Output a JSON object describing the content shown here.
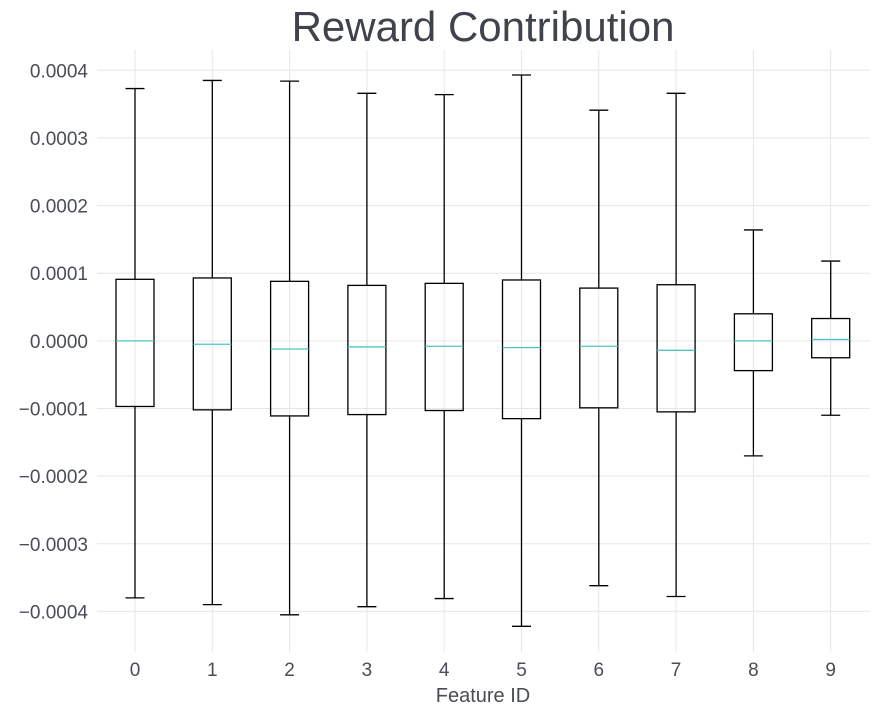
{
  "chart_data": {
    "type": "box",
    "title": "Reward Contribution",
    "xlabel": "Feature ID",
    "ylabel": "",
    "categories": [
      "0",
      "1",
      "2",
      "3",
      "4",
      "5",
      "6",
      "7",
      "8",
      "9"
    ],
    "ylim": [
      -0.00046,
      0.00043
    ],
    "yticks": [
      -0.0004,
      -0.0003,
      -0.0002,
      -0.0001,
      0.0,
      0.0001,
      0.0002,
      0.0003,
      0.0004
    ],
    "ytick_labels": [
      "−0.0004",
      "−0.0003",
      "−0.0002",
      "−0.0001",
      "0.0000",
      "0.0001",
      "0.0002",
      "0.0003",
      "0.0004"
    ],
    "grid": true,
    "boxes": [
      {
        "category": "0",
        "whisker_low": -0.00038,
        "q1": -9.7e-05,
        "median": 0.0,
        "q3": 9.1e-05,
        "whisker_high": 0.000373
      },
      {
        "category": "1",
        "whisker_low": -0.00039,
        "q1": -0.000102,
        "median": -5e-06,
        "q3": 9.3e-05,
        "whisker_high": 0.000385
      },
      {
        "category": "2",
        "whisker_low": -0.000405,
        "q1": -0.000111,
        "median": -1.2e-05,
        "q3": 8.8e-05,
        "whisker_high": 0.000384
      },
      {
        "category": "3",
        "whisker_low": -0.000393,
        "q1": -0.000109,
        "median": -9e-06,
        "q3": 8.2e-05,
        "whisker_high": 0.000366
      },
      {
        "category": "4",
        "whisker_low": -0.000381,
        "q1": -0.000103,
        "median": -8e-06,
        "q3": 8.5e-05,
        "whisker_high": 0.000364
      },
      {
        "category": "5",
        "whisker_low": -0.000422,
        "q1": -0.000115,
        "median": -1e-05,
        "q3": 9e-05,
        "whisker_high": 0.000393
      },
      {
        "category": "6",
        "whisker_low": -0.000362,
        "q1": -9.9e-05,
        "median": -8e-06,
        "q3": 7.8e-05,
        "whisker_high": 0.000341
      },
      {
        "category": "7",
        "whisker_low": -0.000378,
        "q1": -0.000105,
        "median": -1.4e-05,
        "q3": 8.3e-05,
        "whisker_high": 0.000366
      },
      {
        "category": "8",
        "whisker_low": -0.00017,
        "q1": -4.4e-05,
        "median": 0.0,
        "q3": 4e-05,
        "whisker_high": 0.000164
      },
      {
        "category": "9",
        "whisker_low": -0.00011,
        "q1": -2.5e-05,
        "median": 2e-06,
        "q3": 3.3e-05,
        "whisker_high": 0.000118
      }
    ],
    "colors": {
      "box_edge": "#000000",
      "median": "#4cc7c0",
      "grid": "#e6e6e6",
      "text": "#4a4d55",
      "title": "#3f434b"
    }
  }
}
